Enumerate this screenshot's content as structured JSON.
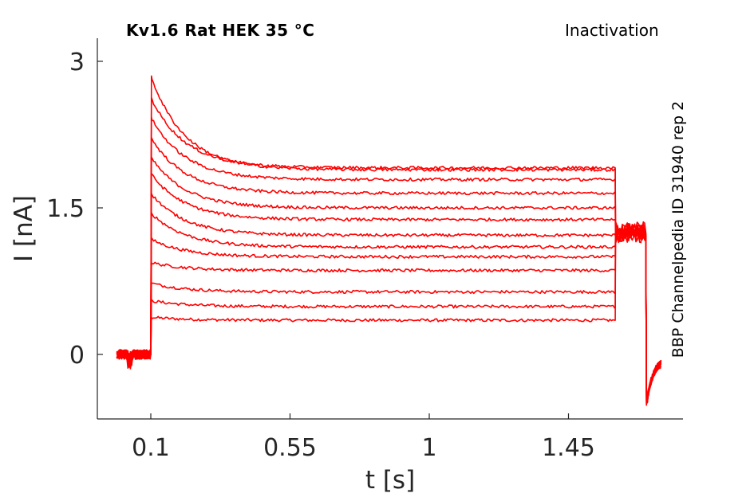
{
  "title_left": "Kv1.6  Rat  HEK  35 °C",
  "title_right": "Inactivation",
  "side_label": "BBP Channelpedia ID 31940 rep 2",
  "chart_data": {
    "type": "line",
    "xlabel": "t [s]",
    "ylabel": "I [nA]",
    "xlim": [
      -0.07,
      1.82
    ],
    "ylim": [
      -0.65,
      3.25
    ],
    "xticks": [
      0.1,
      0.55,
      1,
      1.45
    ],
    "xtick_labels": [
      "0.1",
      "0.55",
      "1",
      "1.45"
    ],
    "yticks": [
      0,
      1.5,
      3
    ],
    "ytick_labels": [
      "0",
      "1.5",
      "3"
    ],
    "grid": false,
    "line_color": "#ff0000",
    "step_on": 0.1,
    "step_off": 1.6,
    "end_time": 1.75,
    "series": [
      {
        "peak": 0.38,
        "steady": 0.35
      },
      {
        "peak": 0.55,
        "steady": 0.49
      },
      {
        "peak": 0.73,
        "steady": 0.64
      },
      {
        "peak": 0.94,
        "steady": 0.86
      },
      {
        "peak": 1.18,
        "steady": 1.0
      },
      {
        "peak": 1.45,
        "steady": 1.1
      },
      {
        "peak": 1.65,
        "steady": 1.22
      },
      {
        "peak": 1.85,
        "steady": 1.38
      },
      {
        "peak": 2.02,
        "steady": 1.5
      },
      {
        "peak": 2.22,
        "steady": 1.65
      },
      {
        "peak": 2.43,
        "steady": 1.79
      },
      {
        "peak": 2.63,
        "steady": 1.91
      },
      {
        "peak": 2.85,
        "steady": 1.89
      }
    ],
    "tail_level": 1.25,
    "tail_trough": -0.52,
    "tail_recovery": -0.05
  }
}
